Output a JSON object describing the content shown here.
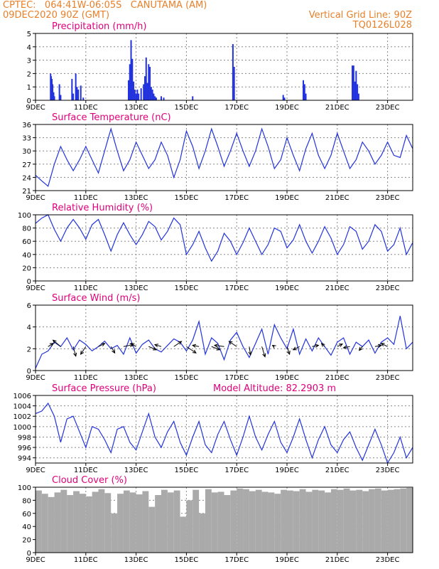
{
  "header": {
    "left_line1": "CPTEC:   064:41W-06:05S   CANUTAMA (AM)",
    "left_line2": "09DEC2020 90Z (GMT)",
    "right_line1": "Vertical Grid Line: 90Z",
    "right_line2": "TQ0126L028"
  },
  "colors": {
    "header": "#e8802a",
    "title": "#e0007a",
    "series": "#2233dd",
    "cloud": "#aaaaaa",
    "arrow": "#000000"
  },
  "chart_data": [
    {
      "type": "bar",
      "title": "Precipitation (mm/h)",
      "ylim": [
        0,
        5
      ],
      "yticks": [
        "0",
        "1",
        "2",
        "3",
        "4",
        "5"
      ],
      "xticks": [
        "9DEC",
        "11DEC",
        "13DEC",
        "15DEC",
        "17DEC",
        "19DEC",
        "21DEC",
        "23DEC"
      ],
      "x": [
        9.6,
        9.62,
        9.65,
        9.68,
        9.72,
        9.75,
        9.95,
        10.0,
        10.45,
        10.5,
        10.6,
        10.65,
        10.7,
        10.8,
        10.9,
        12.7,
        12.75,
        12.8,
        12.85,
        12.9,
        12.95,
        13.0,
        13.05,
        13.1,
        13.2,
        13.3,
        13.35,
        13.4,
        13.45,
        13.5,
        13.55,
        13.6,
        13.65,
        13.7,
        13.75,
        13.8,
        14.0,
        14.1,
        15.25,
        16.85,
        16.9,
        18.85,
        18.9,
        19.65,
        19.7,
        19.75,
        21.6,
        21.65,
        21.7,
        21.75,
        21.8,
        21.85
      ],
      "values": [
        2.0,
        1.8,
        1.6,
        1.2,
        0.6,
        0.3,
        1.2,
        0.4,
        1.6,
        0.5,
        2.0,
        1.0,
        0.8,
        1.1,
        0.2,
        1.5,
        2.7,
        4.5,
        3.1,
        1.4,
        0.8,
        0.5,
        0.8,
        0.5,
        0.9,
        1.2,
        1.8,
        3.2,
        1.3,
        2.7,
        2.5,
        1.0,
        0.8,
        0.5,
        0.3,
        0.2,
        0.3,
        0.2,
        0.3,
        4.2,
        2.5,
        0.4,
        0.2,
        1.5,
        1.2,
        0.5,
        2.6,
        2.6,
        1.4,
        2.2,
        1.2,
        0.5
      ]
    },
    {
      "type": "line",
      "title": "Surface Temperature (nC)",
      "ylim": [
        21,
        36
      ],
      "yticks": [
        "21",
        "24",
        "27",
        "30",
        "33",
        "36"
      ],
      "xticks": [
        "9DEC",
        "11DEC",
        "13DEC",
        "15DEC",
        "17DEC",
        "19DEC",
        "21DEC",
        "23DEC"
      ],
      "x": [
        9.0,
        9.25,
        9.5,
        9.75,
        10.0,
        10.25,
        10.5,
        10.75,
        11.0,
        11.25,
        11.5,
        11.75,
        12.0,
        12.25,
        12.5,
        12.75,
        13.0,
        13.25,
        13.5,
        13.75,
        14.0,
        14.25,
        14.5,
        14.75,
        15.0,
        15.25,
        15.5,
        15.75,
        16.0,
        16.25,
        16.5,
        16.75,
        17.0,
        17.25,
        17.5,
        17.75,
        18.0,
        18.25,
        18.5,
        18.75,
        19.0,
        19.25,
        19.5,
        19.75,
        20.0,
        20.25,
        20.5,
        20.75,
        21.0,
        21.25,
        21.5,
        21.75,
        22.0,
        22.25,
        22.5,
        22.75,
        23.0,
        23.25,
        23.5,
        23.75,
        24.0
      ],
      "values": [
        24.5,
        23.2,
        22.0,
        27.0,
        31.0,
        28.0,
        25.5,
        28.0,
        31.0,
        28.0,
        25.0,
        30.0,
        35.0,
        30.0,
        25.5,
        28.0,
        32.0,
        29.0,
        26.0,
        28.0,
        32.0,
        29.0,
        24.0,
        28.0,
        34.5,
        31.0,
        26.0,
        30.0,
        35.0,
        31.0,
        26.5,
        30.0,
        34.0,
        30.0,
        26.5,
        30.0,
        35.0,
        31.0,
        26.0,
        28.0,
        33.0,
        29.0,
        25.5,
        30.5,
        34.0,
        29.0,
        26.0,
        29.0,
        34.0,
        30.0,
        26.0,
        28.0,
        32.0,
        30.0,
        27.0,
        29.0,
        32.0,
        29.0,
        28.5,
        33.5,
        30.5
      ]
    },
    {
      "type": "line",
      "title": "Relative Humidity (%)",
      "ylim": [
        0,
        100
      ],
      "yticks": [
        "0",
        "20",
        "40",
        "60",
        "80",
        "100"
      ],
      "xticks": [
        "9DEC",
        "11DEC",
        "13DEC",
        "15DEC",
        "17DEC",
        "19DEC",
        "21DEC",
        "23DEC"
      ],
      "x": [
        9.0,
        9.25,
        9.5,
        9.75,
        10.0,
        10.25,
        10.5,
        10.75,
        11.0,
        11.25,
        11.5,
        11.75,
        12.0,
        12.25,
        12.5,
        12.75,
        13.0,
        13.25,
        13.5,
        13.75,
        14.0,
        14.25,
        14.5,
        14.75,
        15.0,
        15.25,
        15.5,
        15.75,
        16.0,
        16.25,
        16.5,
        16.75,
        17.0,
        17.25,
        17.5,
        17.75,
        18.0,
        18.25,
        18.5,
        18.75,
        19.0,
        19.25,
        19.5,
        19.75,
        20.0,
        20.25,
        20.5,
        20.75,
        21.0,
        21.25,
        21.5,
        21.75,
        22.0,
        22.25,
        22.5,
        22.75,
        23.0,
        23.25,
        23.5,
        23.75,
        24.0
      ],
      "values": [
        87,
        95,
        100,
        78,
        60,
        80,
        93,
        80,
        63,
        85,
        93,
        70,
        45,
        70,
        88,
        70,
        55,
        70,
        90,
        82,
        62,
        75,
        95,
        85,
        40,
        55,
        75,
        50,
        30,
        45,
        72,
        60,
        40,
        58,
        80,
        60,
        40,
        55,
        80,
        75,
        50,
        62,
        85,
        60,
        42,
        60,
        82,
        65,
        40,
        55,
        82,
        75,
        48,
        60,
        85,
        75,
        45,
        55,
        80,
        40,
        58
      ]
    },
    {
      "type": "line",
      "title": "Surface Wind (m/s)",
      "ylim": [
        0,
        6
      ],
      "yticks": [
        "0",
        "2",
        "4",
        "6"
      ],
      "xticks": [
        "9DEC",
        "11DEC",
        "13DEC",
        "15DEC",
        "17DEC",
        "19DEC",
        "21DEC",
        "23DEC"
      ],
      "x": [
        9.0,
        9.25,
        9.5,
        9.75,
        10.0,
        10.25,
        10.5,
        10.75,
        11.0,
        11.25,
        11.5,
        11.75,
        12.0,
        12.25,
        12.5,
        12.75,
        13.0,
        13.25,
        13.5,
        13.75,
        14.0,
        14.25,
        14.5,
        14.75,
        15.0,
        15.25,
        15.5,
        15.75,
        16.0,
        16.25,
        16.5,
        16.75,
        17.0,
        17.25,
        17.5,
        17.75,
        18.0,
        18.25,
        18.5,
        18.75,
        19.0,
        19.25,
        19.5,
        19.75,
        20.0,
        20.25,
        20.5,
        20.75,
        21.0,
        21.25,
        21.5,
        21.75,
        22.0,
        22.25,
        22.5,
        22.75,
        23.0,
        23.25,
        23.5,
        23.75,
        24.0
      ],
      "values": [
        0.2,
        1.5,
        1.8,
        2.6,
        2.2,
        3.0,
        1.9,
        2.8,
        2.4,
        1.8,
        2.2,
        2.7,
        2.0,
        2.3,
        1.5,
        3.0,
        1.6,
        2.4,
        2.8,
        2.0,
        1.7,
        2.3,
        2.9,
        2.6,
        1.8,
        2.8,
        4.5,
        1.5,
        3.0,
        2.5,
        1.0,
        2.8,
        3.5,
        2.2,
        1.2,
        2.5,
        3.8,
        1.5,
        4.2,
        3.0,
        2.0,
        3.8,
        1.5,
        2.9,
        1.8,
        3.0,
        2.2,
        1.4,
        2.6,
        3.0,
        1.5,
        2.6,
        2.2,
        2.8,
        1.6,
        2.6,
        3.0,
        2.4,
        5.0,
        2.0,
        2.6
      ],
      "arrows": {
        "x": [
          9.5,
          10.0,
          10.5,
          11.0,
          11.5,
          12.0,
          12.5,
          13.0,
          13.5,
          14.0,
          14.5,
          15.0,
          15.5,
          16.0,
          16.5,
          17.0,
          17.5,
          18.0,
          18.5,
          19.0,
          19.5,
          20.0,
          20.5,
          21.0,
          21.5,
          22.0,
          22.5,
          23.0
        ],
        "u": [
          0.8,
          -1.2,
          0.4,
          -0.8,
          1.0,
          0.6,
          1.5,
          -0.8,
          1.2,
          -1.0,
          1.2,
          1.5,
          -1.0,
          1.3,
          -1.5,
          -1.2,
          0.2,
          0.5,
          -0.3,
          0.4,
          -1.0,
          1.0,
          -0.5,
          0.8,
          -1.0,
          -0.5,
          1.0,
          -1.0
        ],
        "v": [
          0.5,
          1.0,
          -1.5,
          -1.2,
          0.5,
          -1.0,
          0.3,
          0.5,
          -0.5,
          0.3,
          0.8,
          -1.0,
          0.2,
          -0.5,
          0.2,
          0.8,
          -1.3,
          -1.6,
          0.2,
          -1.2,
          -0.5,
          0.2,
          0.5,
          0.4,
          -0.2,
          -0.6,
          0.2,
          0.5
        ]
      }
    },
    {
      "type": "line",
      "title": "Surface Pressure (hPa)",
      "subtitle": "Model Altitude: 82.2903 m",
      "ylim": [
        993,
        1006
      ],
      "yticks": [
        "994",
        "996",
        "998",
        "1000",
        "1002",
        "1004",
        "1006"
      ],
      "xticks": [
        "9DEC",
        "11DEC",
        "13DEC",
        "15DEC",
        "17DEC",
        "19DEC",
        "21DEC",
        "23DEC"
      ],
      "x": [
        9.0,
        9.25,
        9.5,
        9.75,
        10.0,
        10.25,
        10.5,
        10.75,
        11.0,
        11.25,
        11.5,
        11.75,
        12.0,
        12.25,
        12.5,
        12.75,
        13.0,
        13.25,
        13.5,
        13.75,
        14.0,
        14.25,
        14.5,
        14.75,
        15.0,
        15.25,
        15.5,
        15.75,
        16.0,
        16.25,
        16.5,
        16.75,
        17.0,
        17.25,
        17.5,
        17.75,
        18.0,
        18.25,
        18.5,
        18.75,
        19.0,
        19.25,
        19.5,
        19.75,
        20.0,
        20.25,
        20.5,
        20.75,
        21.0,
        21.25,
        21.5,
        21.75,
        22.0,
        22.25,
        22.5,
        22.75,
        23.0,
        23.25,
        23.5,
        23.75,
        24.0
      ],
      "values": [
        1002.5,
        1003.0,
        1004.5,
        1002.0,
        997.0,
        1001.5,
        1002.0,
        999.0,
        996.0,
        1000.0,
        999.5,
        997.5,
        995.0,
        999.5,
        1000.0,
        997.0,
        995.5,
        999.0,
        1002.5,
        998.0,
        996.0,
        999.0,
        1001.0,
        997.0,
        994.5,
        998.0,
        1001.0,
        996.5,
        995.0,
        998.5,
        1001.0,
        997.5,
        994.5,
        998.0,
        1002.0,
        998.0,
        995.5,
        998.5,
        1001.0,
        997.0,
        995.0,
        998.0,
        1001.5,
        997.5,
        994.0,
        997.5,
        1000.0,
        996.5,
        995.0,
        997.5,
        999.0,
        996.0,
        993.5,
        996.5,
        999.5,
        996.5,
        993.0,
        995.0,
        998.0,
        994.0,
        996.0
      ]
    },
    {
      "type": "bar",
      "title": "Cloud Cover (%)",
      "ylim": [
        0,
        100
      ],
      "yticks": [
        "0",
        "20",
        "40",
        "60",
        "80",
        "100"
      ],
      "xticks": [
        "9DEC",
        "11DEC",
        "13DEC",
        "15DEC",
        "17DEC",
        "19DEC",
        "21DEC",
        "23DEC"
      ],
      "x": [
        9.0,
        9.25,
        9.5,
        9.75,
        10.0,
        10.25,
        10.5,
        10.75,
        11.0,
        11.25,
        11.5,
        11.75,
        12.0,
        12.25,
        12.5,
        12.75,
        13.0,
        13.25,
        13.5,
        13.75,
        14.0,
        14.25,
        14.5,
        14.75,
        15.0,
        15.25,
        15.5,
        15.75,
        16.0,
        16.25,
        16.5,
        16.75,
        17.0,
        17.25,
        17.5,
        17.75,
        18.0,
        18.25,
        18.5,
        18.75,
        19.0,
        19.25,
        19.5,
        19.75,
        20.0,
        20.25,
        20.5,
        20.75,
        21.0,
        21.25,
        21.5,
        21.75,
        22.0,
        22.25,
        22.5,
        22.75,
        23.0,
        23.25,
        23.5,
        23.75,
        24.0
      ],
      "values": [
        95,
        90,
        85,
        92,
        96,
        88,
        94,
        90,
        86,
        93,
        97,
        91,
        60,
        90,
        95,
        92,
        89,
        94,
        70,
        88,
        96,
        92,
        95,
        55,
        80,
        96,
        60,
        97,
        92,
        93,
        88,
        95,
        98,
        97,
        94,
        96,
        93,
        92,
        90,
        96,
        95,
        94,
        97,
        93,
        96,
        95,
        92,
        97,
        96,
        98,
        95,
        96,
        94,
        97,
        98,
        95,
        96,
        97,
        98,
        99,
        99
      ]
    }
  ]
}
